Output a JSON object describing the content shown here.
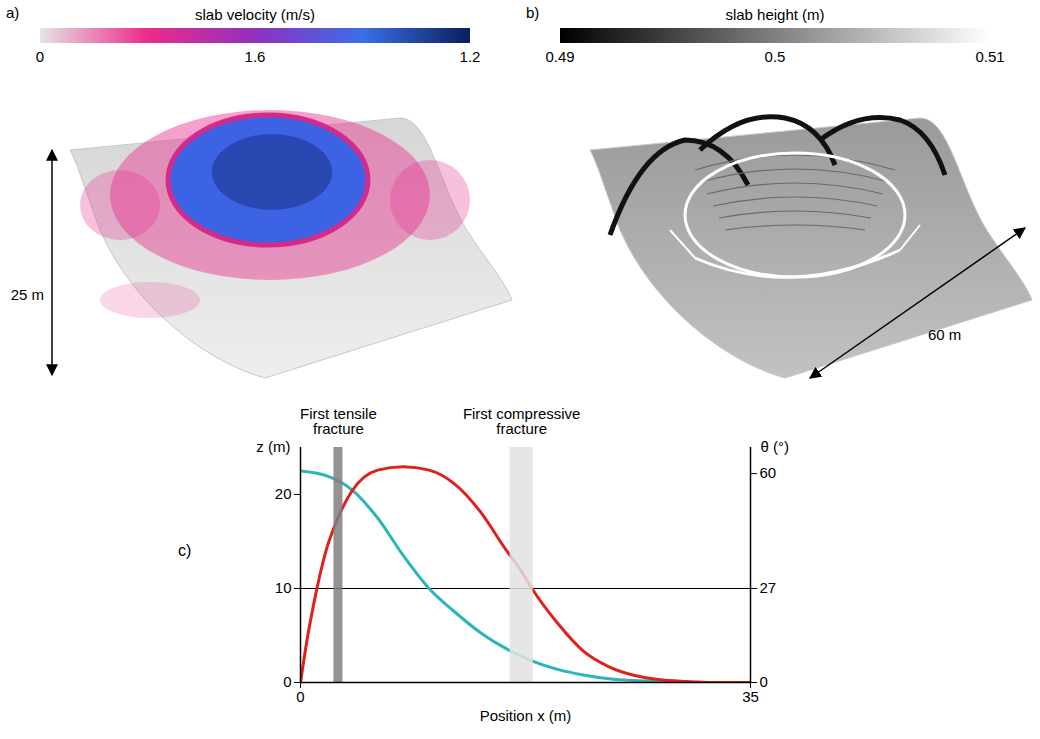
{
  "panels": [
    {
      "letter": "a)",
      "colorbar": {
        "title": "slab velocity (m/s)",
        "ticks": [
          0,
          1.6,
          1.2
        ],
        "colors": [
          "#e4e4e4",
          "#ee2a8a",
          "#9030c0",
          "#3a6ee8",
          "#0b1f5a"
        ]
      },
      "dimension": "25 m"
    },
    {
      "letter": "b)",
      "colorbar": {
        "title": "slab height (m)",
        "range": [
          0.49,
          0.51
        ],
        "ticks": [
          0.49,
          0.5,
          0.51
        ],
        "colors": [
          "#000000",
          "#ffffff"
        ]
      },
      "dimension": "60 m"
    }
  ],
  "chart_data": {
    "type": "line",
    "panel_label": "c)",
    "x_label": "Position x (m)",
    "y_label": "z (m)",
    "y2_label": "θ (°)",
    "xlim": [
      0,
      35
    ],
    "xticks": [
      0,
      35
    ],
    "ylim": [
      0,
      25
    ],
    "yticks": [
      0,
      10,
      20
    ],
    "y2lim": [
      0,
      67.5
    ],
    "y2ticks": [
      0,
      27,
      60
    ],
    "reference_line": {
      "y": 10
    },
    "annotations": [
      {
        "text": "First tensile fracture",
        "x": [
          2.6,
          3.3
        ],
        "color": "#808080"
      },
      {
        "text": "First compressive fracture",
        "x": [
          16.3,
          18.1
        ],
        "color": "#e2e2e2"
      }
    ],
    "series": [
      {
        "color": "#2bb5b8",
        "x": [
          0,
          2,
          4,
          6,
          8,
          10,
          12,
          14,
          16,
          18,
          20,
          22,
          24,
          26,
          28,
          30,
          35
        ],
        "values": [
          22.5,
          22,
          20.5,
          17.5,
          13.5,
          10,
          7.5,
          5.3,
          3.6,
          2.3,
          1.4,
          0.8,
          0.4,
          0.2,
          0.1,
          0,
          0
        ]
      },
      {
        "color": "#e0201b",
        "axis": "y2",
        "x": [
          0,
          0.5,
          1,
          2,
          3,
          4,
          6,
          8,
          10,
          12,
          14,
          16,
          17,
          18,
          20,
          22,
          24,
          26,
          28,
          30,
          32,
          35
        ],
        "values": [
          0,
          12,
          22,
          38,
          48,
          55,
          61,
          62,
          61,
          57,
          49,
          38,
          33,
          27,
          17,
          9,
          4.5,
          2,
          0.8,
          0.3,
          0,
          0
        ]
      }
    ]
  }
}
